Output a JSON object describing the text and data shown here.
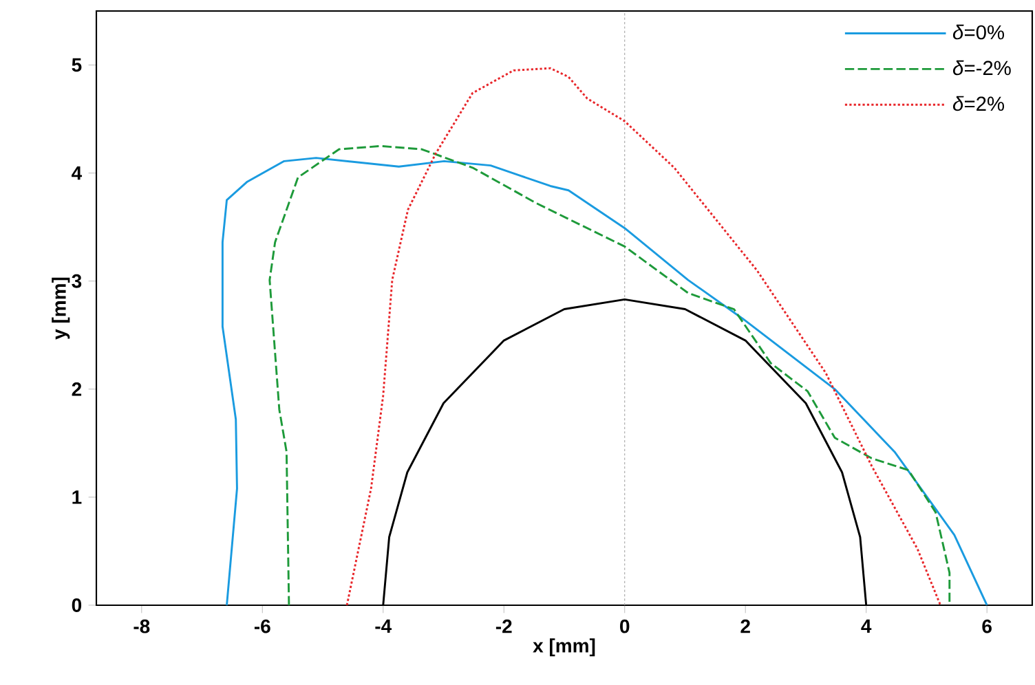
{
  "chart_data": {
    "type": "line",
    "xlabel": "x [mm]",
    "ylabel": "y [mm]",
    "xlim": [
      -8.75,
      6.75
    ],
    "ylim": [
      0,
      5.5
    ],
    "xticks": [
      -8,
      -6,
      -4,
      -2,
      0,
      2,
      4,
      6
    ],
    "yticks": [
      0,
      1,
      2,
      3,
      4,
      5
    ],
    "legend": "top right",
    "ref_lines": [
      {
        "axis": "x",
        "value": 0,
        "color": "#a0a0a0",
        "line_style": "dotted"
      }
    ],
    "series": [
      {
        "name": "*δ*=0%",
        "color": "#1a9be0",
        "line_style": "solid",
        "x": [
          -6.59,
          -6.42,
          -6.44,
          -6.66,
          -6.66,
          -6.59,
          -6.25,
          -5.64,
          -5.11,
          -3.74,
          -2.99,
          -2.22,
          -1.23,
          -0.93,
          0,
          1.05,
          1.96,
          3.48,
          4.47,
          5.46,
          6.0
        ],
        "values": [
          0,
          1.08,
          1.72,
          2.58,
          3.36,
          3.75,
          3.92,
          4.11,
          4.14,
          4.06,
          4.11,
          4.07,
          3.88,
          3.84,
          3.49,
          3.01,
          2.65,
          2.0,
          1.42,
          0.65,
          0
        ]
      },
      {
        "name": "*δ*=-2%",
        "color": "#1e9a3a",
        "line_style": "dashed",
        "x": [
          -5.56,
          -5.6,
          -5.72,
          -5.88,
          -5.79,
          -5.41,
          -4.73,
          -4.04,
          -3.36,
          -2.52,
          -1.46,
          0,
          1.05,
          1.81,
          2.42,
          3.03,
          3.48,
          4.09,
          4.7,
          5.15,
          5.38,
          5.38
        ],
        "values": [
          0,
          1.42,
          1.81,
          3.01,
          3.36,
          3.96,
          4.22,
          4.25,
          4.22,
          4.05,
          3.72,
          3.32,
          2.89,
          2.74,
          2.24,
          1.98,
          1.55,
          1.36,
          1.25,
          0.86,
          0.3,
          0
        ]
      },
      {
        "name": "*δ*=2%",
        "color": "#e8262a",
        "line_style": "dotted",
        "x": [
          -4.6,
          -4.2,
          -4.0,
          -3.85,
          -3.59,
          -3.13,
          -2.52,
          -1.84,
          -1.23,
          -0.93,
          -0.62,
          0,
          0.82,
          2.19,
          3.33,
          4.09,
          4.85,
          5.23
        ],
        "values": [
          0,
          1.08,
          1.94,
          3.01,
          3.66,
          4.18,
          4.74,
          4.95,
          4.97,
          4.89,
          4.69,
          4.48,
          4.05,
          3.1,
          2.15,
          1.29,
          0.52,
          0
        ]
      },
      {
        "color": "#000000",
        "line_style": "solid",
        "x": [
          -4,
          -3.9,
          -3.6,
          -3,
          -2,
          -1,
          0,
          1,
          2,
          3,
          3.6,
          3.9,
          4
        ],
        "values": [
          0,
          0.63,
          1.23,
          1.87,
          2.45,
          2.74,
          2.83,
          2.74,
          2.45,
          1.87,
          1.23,
          0.63,
          0
        ]
      }
    ]
  }
}
